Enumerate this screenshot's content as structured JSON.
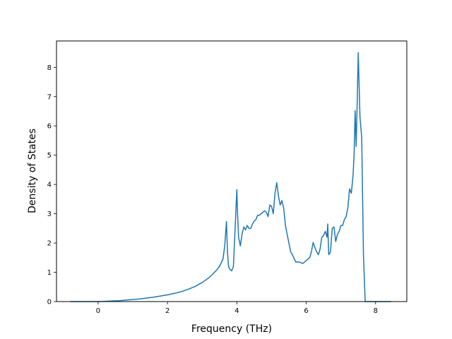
{
  "chart_data": {
    "type": "line",
    "title": "",
    "xlabel": "Frequency (THz)",
    "ylabel": "Density of States",
    "xlim": [
      -1.2,
      8.9
    ],
    "ylim": [
      0,
      8.9
    ],
    "xticks": [
      0,
      2,
      4,
      6,
      8
    ],
    "yticks": [
      0,
      1,
      2,
      3,
      4,
      5,
      6,
      7,
      8
    ],
    "xtick_labels": [
      "0",
      "2",
      "4",
      "6",
      "8"
    ],
    "ytick_labels": [
      "0",
      "1",
      "2",
      "3",
      "4",
      "5",
      "6",
      "7",
      "8"
    ],
    "grid": false,
    "line_color": "#1f77b4",
    "series": [
      {
        "x": [
          -0.8,
          -0.4,
          0.0,
          0.2,
          0.4,
          0.6,
          0.8,
          1.0,
          1.2,
          1.4,
          1.6,
          1.8,
          2.0,
          2.2,
          2.4,
          2.6,
          2.8,
          3.0,
          3.2,
          3.4,
          3.5,
          3.6,
          3.65,
          3.7,
          3.73,
          3.76,
          3.8,
          3.85,
          3.9,
          3.95,
          4.0,
          4.02,
          4.05,
          4.1,
          4.15,
          4.2,
          4.25,
          4.3,
          4.35,
          4.4,
          4.45,
          4.5,
          4.55,
          4.6,
          4.65,
          4.7,
          4.75,
          4.8,
          4.85,
          4.9,
          4.95,
          5.0,
          5.05,
          5.1,
          5.15,
          5.2,
          5.25,
          5.3,
          5.35,
          5.4,
          5.45,
          5.5,
          5.55,
          5.6,
          5.7,
          5.8,
          5.9,
          6.0,
          6.1,
          6.15,
          6.2,
          6.25,
          6.3,
          6.35,
          6.4,
          6.45,
          6.5,
          6.55,
          6.6,
          6.62,
          6.65,
          6.7,
          6.75,
          6.8,
          6.85,
          6.9,
          6.95,
          7.0,
          7.05,
          7.1,
          7.15,
          7.2,
          7.25,
          7.3,
          7.35,
          7.38,
          7.41,
          7.44,
          7.47,
          7.5,
          7.55,
          7.6,
          7.65,
          7.7,
          7.75,
          7.8,
          8.0,
          8.2,
          8.45
        ],
        "y": [
          0.0,
          0.0,
          0.0,
          0.01,
          0.02,
          0.03,
          0.05,
          0.07,
          0.09,
          0.12,
          0.15,
          0.19,
          0.23,
          0.28,
          0.34,
          0.42,
          0.52,
          0.65,
          0.82,
          1.05,
          1.2,
          1.45,
          1.9,
          2.73,
          1.7,
          1.2,
          1.1,
          1.05,
          1.2,
          2.5,
          3.82,
          3.0,
          2.2,
          1.9,
          2.3,
          2.55,
          2.45,
          2.6,
          2.5,
          2.5,
          2.65,
          2.75,
          2.8,
          2.95,
          2.95,
          3.0,
          3.05,
          3.1,
          3.05,
          2.9,
          3.3,
          3.25,
          3.0,
          3.7,
          4.06,
          3.6,
          3.3,
          3.45,
          3.2,
          2.6,
          2.3,
          2.0,
          1.7,
          1.6,
          1.35,
          1.35,
          1.3,
          1.4,
          1.5,
          1.7,
          2.02,
          1.85,
          1.7,
          1.6,
          1.8,
          2.2,
          2.25,
          2.4,
          2.2,
          2.65,
          1.6,
          1.7,
          2.5,
          2.55,
          2.05,
          2.3,
          2.4,
          2.6,
          2.6,
          2.8,
          2.9,
          3.2,
          3.85,
          3.7,
          4.3,
          5.0,
          6.52,
          5.3,
          6.8,
          8.5,
          6.3,
          5.6,
          1.6,
          0.0,
          0.0,
          0.0,
          0.0,
          0.0,
          0.0
        ]
      }
    ]
  }
}
